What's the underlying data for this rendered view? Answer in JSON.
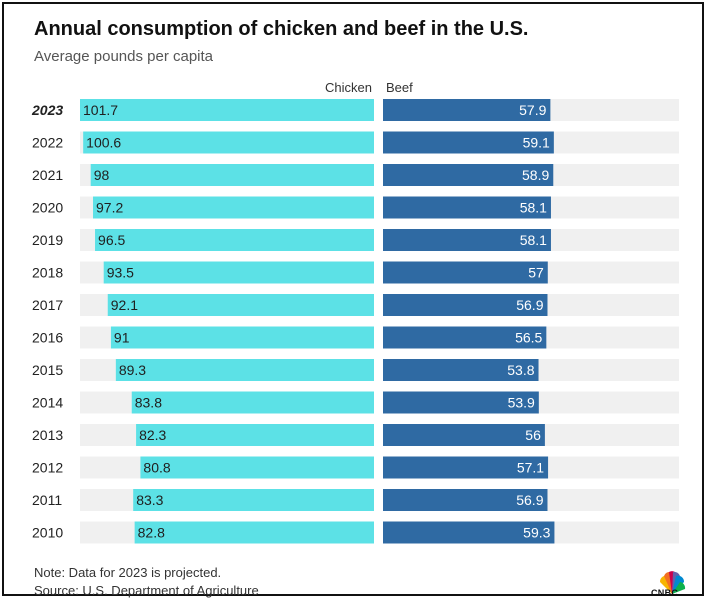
{
  "header": {
    "title": "Annual consumption of chicken and beef in the U.S.",
    "subtitle": "Average pounds per capita"
  },
  "footer": {
    "note": "Note: Data for 2023 is projected.",
    "source": "Source: U.S. Department of Agriculture"
  },
  "logo": {
    "text": "CNBC",
    "icon": "cnbc-peacock-logo"
  },
  "colors": {
    "chicken": "#5ce1e6",
    "beef": "#2f6aa3",
    "track": "#f0f0f0"
  },
  "chart_data": {
    "type": "bar",
    "orientation": "horizontal",
    "layout": "back-to-back",
    "title": "Annual consumption of chicken and beef in the U.S.",
    "subtitle": "Average pounds per capita",
    "categories": [
      "2023",
      "2022",
      "2021",
      "2020",
      "2019",
      "2018",
      "2017",
      "2016",
      "2015",
      "2014",
      "2013",
      "2012",
      "2011",
      "2010"
    ],
    "highlighted_category": "2023",
    "series": [
      {
        "name": "Chicken",
        "values": [
          101.7,
          100.6,
          98,
          97.2,
          96.5,
          93.5,
          92.1,
          91,
          89.3,
          83.8,
          82.3,
          80.8,
          83.3,
          82.8
        ],
        "labels": [
          "101.7",
          "100.6",
          "98",
          "97.2",
          "96.5",
          "93.5",
          "92.1",
          "91",
          "89.3",
          "83.8",
          "82.3",
          "80.8",
          "83.3",
          "82.8"
        ],
        "color": "#5ce1e6",
        "direction": "left"
      },
      {
        "name": "Beef",
        "values": [
          57.9,
          59.1,
          58.9,
          58.1,
          58.1,
          57,
          56.9,
          56.5,
          53.8,
          53.9,
          56,
          57.1,
          56.9,
          59.3
        ],
        "labels": [
          "57.9",
          "59.1",
          "58.9",
          "58.1",
          "58.1",
          "57",
          "56.9",
          "56.5",
          "53.8",
          "53.9",
          "56",
          "57.1",
          "56.9",
          "59.3"
        ],
        "color": "#2f6aa3",
        "direction": "right"
      }
    ],
    "xlim": [
      0,
      105
    ],
    "grid": false,
    "legend": "top-center"
  }
}
